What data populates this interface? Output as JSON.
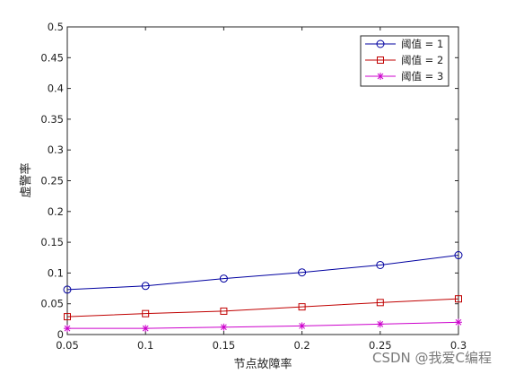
{
  "chart_data": {
    "type": "line",
    "title": "",
    "xlabel": "节点故障率",
    "ylabel": "虚警率",
    "x": [
      0.05,
      0.1,
      0.15,
      0.2,
      0.25,
      0.3
    ],
    "xlim": [
      0.05,
      0.3
    ],
    "ylim": [
      0,
      0.5
    ],
    "xticks": [
      "0.05",
      "0.1",
      "0.15",
      "0.2",
      "0.25",
      "0.3"
    ],
    "yticks": [
      "0",
      "0.05",
      "0.1",
      "0.15",
      "0.2",
      "0.25",
      "0.3",
      "0.35",
      "0.4",
      "0.45",
      "0.5"
    ],
    "grid": false,
    "legend_position": "top-right",
    "series": [
      {
        "name": "阈值 = 1",
        "values": [
          0.073,
          0.079,
          0.091,
          0.101,
          0.113,
          0.129
        ],
        "color": "#0000a0",
        "marker": "circle"
      },
      {
        "name": "阈值 = 2",
        "values": [
          0.029,
          0.034,
          0.038,
          0.045,
          0.052,
          0.058
        ],
        "color": "#c00000",
        "marker": "square"
      },
      {
        "name": "阈值 = 3",
        "values": [
          0.01,
          0.01,
          0.012,
          0.014,
          0.017,
          0.02
        ],
        "color": "#cc00cc",
        "marker": "star"
      }
    ]
  },
  "watermark": "CSDN @我爱C编程"
}
